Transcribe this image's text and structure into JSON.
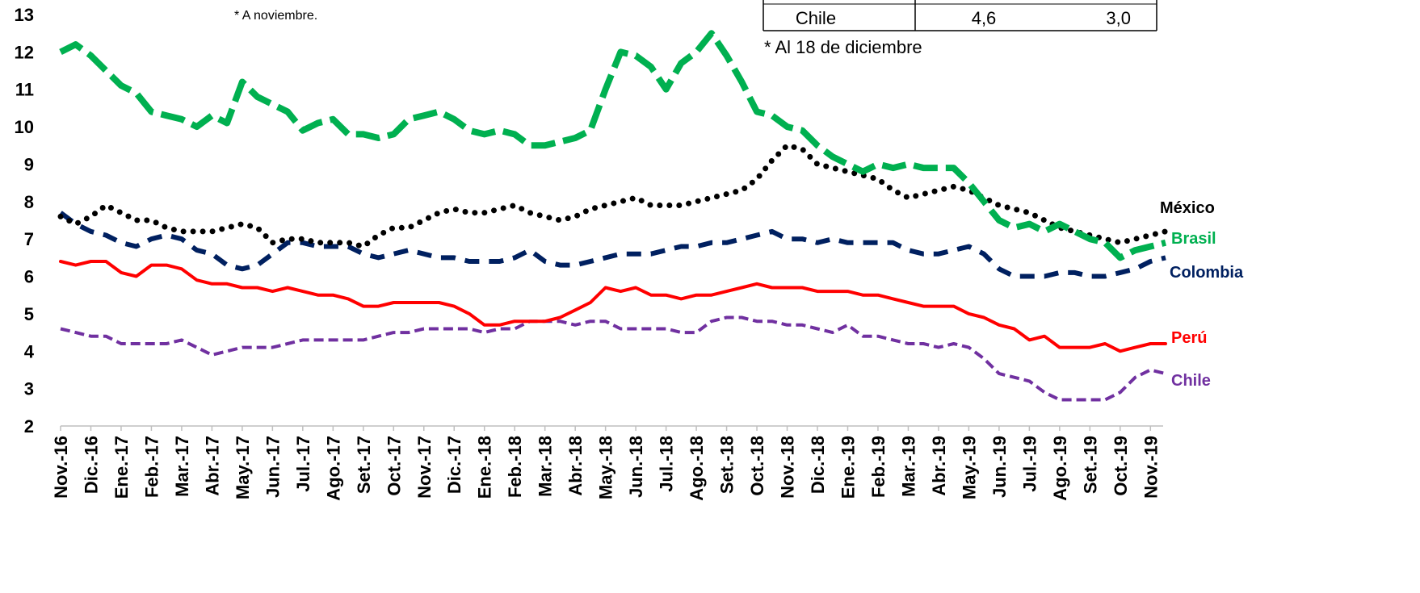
{
  "chart_data": {
    "type": "line",
    "notes": [
      "* A noviembre.",
      "* Al 18 de diciembre"
    ],
    "table_row": [
      "Chile",
      "4,6",
      "3,0"
    ],
    "categories": [
      "Nov.-16",
      null,
      "Dic.-16",
      null,
      "Ene.-17",
      null,
      "Feb.-17",
      null,
      "Mar.-17",
      null,
      "Abr.-17",
      null,
      "May.-17",
      null,
      "Jun.-17",
      null,
      "Jul.-17",
      null,
      "Ago.-17",
      null,
      "Set.-17",
      null,
      "Oct.-17",
      null,
      "Nov.-17",
      null,
      "Dic.-17",
      null,
      "Ene.-18",
      null,
      "Feb.-18",
      null,
      "Mar.-18",
      null,
      "Abr.-18",
      null,
      "May.-18",
      null,
      "Jun.-18",
      null,
      "Jul.-18",
      null,
      "Ago.-18",
      null,
      "Set.-18",
      null,
      "Oct.-18",
      null,
      "Nov.-18",
      null,
      "Dic.-18",
      null,
      "Ene.-19",
      null,
      "Feb.-19",
      null,
      "Mar.-19",
      null,
      "Abr.-19",
      null,
      "May.-19",
      null,
      "Jun.-19",
      null,
      "Jul.-19",
      null,
      "Ago.-19",
      null,
      "Set.-19",
      null,
      "Oct.-19",
      null,
      "Nov.-19",
      null
    ],
    "ylim": [
      2,
      13
    ],
    "yticks": [
      2,
      3,
      4,
      5,
      6,
      7,
      8,
      9,
      10,
      11,
      12,
      13
    ],
    "series": [
      {
        "name": "México",
        "color": "#000000",
        "values": [
          7.6,
          7.4,
          7.6,
          7.9,
          7.7,
          7.5,
          7.5,
          7.3,
          7.2,
          7.2,
          7.2,
          7.3,
          7.4,
          7.3,
          6.9,
          7.0,
          7.0,
          6.9,
          6.9,
          6.9,
          6.8,
          7.1,
          7.3,
          7.3,
          7.5,
          7.7,
          7.8,
          7.7,
          7.7,
          7.8,
          7.9,
          7.7,
          7.6,
          7.5,
          7.6,
          7.8,
          7.9,
          8.0,
          8.1,
          7.9,
          7.9,
          7.9,
          8.0,
          8.1,
          8.2,
          8.3,
          8.6,
          9.1,
          9.5,
          9.4,
          9.0,
          8.9,
          8.8,
          8.7,
          8.6,
          8.3,
          8.1,
          8.2,
          8.3,
          8.4,
          8.3,
          8.1,
          7.9,
          7.8,
          7.7,
          7.5,
          7.3,
          7.2,
          7.1,
          7.0,
          6.9,
          7.0,
          7.1,
          7.2
        ]
      },
      {
        "name": "Brasil",
        "color": "#00b050",
        "values": [
          12.0,
          12.2,
          11.9,
          11.5,
          11.1,
          10.9,
          10.4,
          10.3,
          10.2,
          10.0,
          10.3,
          10.1,
          11.2,
          10.8,
          10.6,
          10.4,
          9.9,
          10.1,
          10.2,
          9.8,
          9.8,
          9.7,
          9.8,
          10.2,
          10.3,
          10.4,
          10.2,
          9.9,
          9.8,
          9.9,
          9.8,
          9.5,
          9.5,
          9.6,
          9.7,
          9.9,
          11.0,
          12.0,
          11.9,
          11.6,
          11.0,
          11.7,
          12.0,
          12.5,
          11.9,
          11.2,
          10.4,
          10.3,
          10.0,
          9.9,
          9.5,
          9.2,
          9.0,
          8.8,
          9.0,
          8.9,
          9.0,
          8.9,
          8.9,
          8.9,
          8.5,
          8.0,
          7.5,
          7.3,
          7.4,
          7.2,
          7.4,
          7.2,
          7.0,
          6.9,
          6.5,
          6.7,
          6.8,
          6.9
        ]
      },
      {
        "name": "Colombia",
        "color": "#002060",
        "values": [
          7.7,
          7.4,
          7.2,
          7.1,
          6.9,
          6.8,
          7.0,
          7.1,
          7.0,
          6.7,
          6.6,
          6.3,
          6.2,
          6.3,
          6.6,
          6.9,
          6.9,
          6.8,
          6.8,
          6.8,
          6.6,
          6.5,
          6.6,
          6.7,
          6.6,
          6.5,
          6.5,
          6.4,
          6.4,
          6.4,
          6.5,
          6.7,
          6.4,
          6.3,
          6.3,
          6.4,
          6.5,
          6.6,
          6.6,
          6.6,
          6.7,
          6.8,
          6.8,
          6.9,
          6.9,
          7.0,
          7.1,
          7.2,
          7.0,
          7.0,
          6.9,
          7.0,
          6.9,
          6.9,
          6.9,
          6.9,
          6.7,
          6.6,
          6.6,
          6.7,
          6.8,
          6.6,
          6.2,
          6.0,
          6.0,
          6.0,
          6.1,
          6.1,
          6.0,
          6.0,
          6.1,
          6.2,
          6.4,
          6.5
        ]
      },
      {
        "name": "Perú",
        "color": "#ff0000",
        "values": [
          6.4,
          6.3,
          6.4,
          6.4,
          6.1,
          6.0,
          6.3,
          6.3,
          6.2,
          5.9,
          5.8,
          5.8,
          5.7,
          5.7,
          5.6,
          5.7,
          5.6,
          5.5,
          5.5,
          5.4,
          5.2,
          5.2,
          5.3,
          5.3,
          5.3,
          5.3,
          5.2,
          5.0,
          4.7,
          4.7,
          4.8,
          4.8,
          4.8,
          4.9,
          5.1,
          5.3,
          5.7,
          5.6,
          5.7,
          5.5,
          5.5,
          5.4,
          5.5,
          5.5,
          5.6,
          5.7,
          5.8,
          5.7,
          5.7,
          5.7,
          5.6,
          5.6,
          5.6,
          5.5,
          5.5,
          5.4,
          5.3,
          5.2,
          5.2,
          5.2,
          5.0,
          4.9,
          4.7,
          4.6,
          4.3,
          4.4,
          4.1,
          4.1,
          4.1,
          4.2,
          4.0,
          4.1,
          4.2,
          4.2
        ]
      },
      {
        "name": "Chile",
        "color": "#7030a0",
        "values": [
          4.6,
          4.5,
          4.4,
          4.4,
          4.2,
          4.2,
          4.2,
          4.2,
          4.3,
          4.1,
          3.9,
          4.0,
          4.1,
          4.1,
          4.1,
          4.2,
          4.3,
          4.3,
          4.3,
          4.3,
          4.3,
          4.4,
          4.5,
          4.5,
          4.6,
          4.6,
          4.6,
          4.6,
          4.5,
          4.6,
          4.6,
          4.8,
          4.8,
          4.8,
          4.7,
          4.8,
          4.8,
          4.6,
          4.6,
          4.6,
          4.6,
          4.5,
          4.5,
          4.8,
          4.9,
          4.9,
          4.8,
          4.8,
          4.7,
          4.7,
          4.6,
          4.5,
          4.7,
          4.4,
          4.4,
          4.3,
          4.2,
          4.2,
          4.1,
          4.2,
          4.1,
          3.8,
          3.4,
          3.3,
          3.2,
          2.9,
          2.7,
          2.7,
          2.7,
          2.7,
          2.9,
          3.3,
          3.5,
          3.4
        ]
      }
    ]
  }
}
